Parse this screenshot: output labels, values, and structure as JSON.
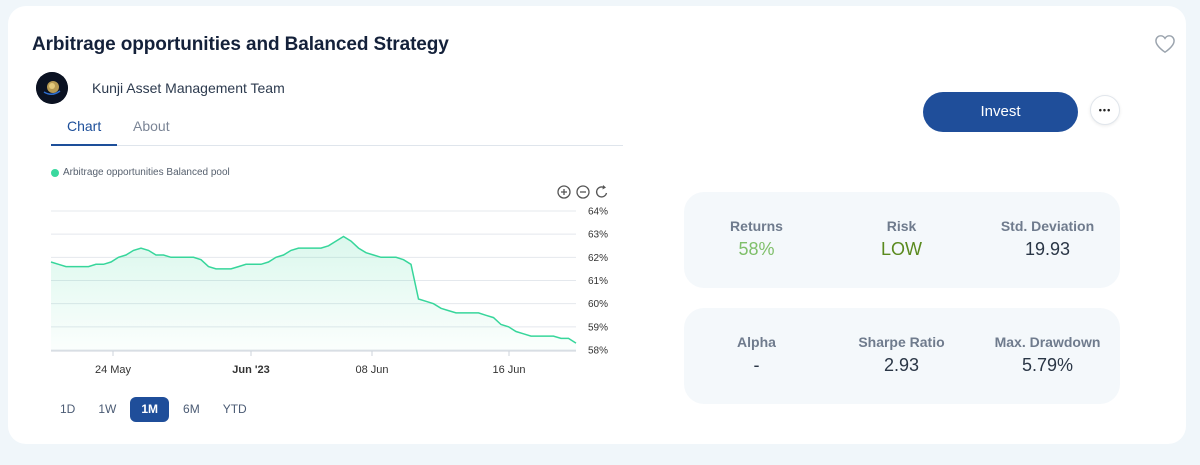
{
  "header": {
    "title": "Arbitrage opportunities and Balanced Strategy",
    "author": "Kunji Asset Management Team"
  },
  "tabs": [
    {
      "label": "Chart",
      "active": true
    },
    {
      "label": "About",
      "active": false
    }
  ],
  "actions": {
    "invest_label": "Invest",
    "more_label": "•••"
  },
  "chart_data": {
    "type": "area",
    "legend": [
      "Arbitrage opportunities Balanced pool"
    ],
    "legend_color": "#3ad89e",
    "line_color": "#37d69b",
    "x_tick_labels": [
      "24 May",
      "Jun '23",
      "08 Jun",
      "16 Jun"
    ],
    "y_tick_labels": [
      "64%",
      "63%",
      "62%",
      "61%",
      "60%",
      "59%",
      "58%"
    ],
    "ylim": [
      57.9,
      64
    ],
    "ylabel_position": "right",
    "grid": true,
    "series": [
      {
        "values": [
          61.8,
          61.7,
          61.6,
          61.6,
          61.6,
          61.6,
          61.7,
          61.7,
          61.8,
          62.0,
          62.1,
          62.3,
          62.4,
          62.3,
          62.1,
          62.1,
          62.0,
          62.0,
          62.0,
          62.0,
          61.9,
          61.6,
          61.5,
          61.5,
          61.5,
          61.6,
          61.7,
          61.7,
          61.7,
          61.8,
          62.0,
          62.1,
          62.3,
          62.4,
          62.4,
          62.4,
          62.4,
          62.5,
          62.7,
          62.9,
          62.7,
          62.4,
          62.2,
          62.1,
          62.0,
          62.0,
          62.0,
          61.9,
          61.7,
          60.2,
          60.1,
          60.0,
          59.8,
          59.7,
          59.6,
          59.6,
          59.6,
          59.6,
          59.5,
          59.4,
          59.1,
          59.0,
          58.8,
          58.7,
          58.6,
          58.6,
          58.6,
          58.6,
          58.5,
          58.5,
          58.3
        ]
      }
    ]
  },
  "chart_tools": [
    "zoom-in-icon",
    "zoom-out-icon",
    "reset-icon"
  ],
  "ranges": [
    {
      "label": "1D",
      "active": false
    },
    {
      "label": "1W",
      "active": false
    },
    {
      "label": "1M",
      "active": true
    },
    {
      "label": "6M",
      "active": false
    },
    {
      "label": "YTD",
      "active": false
    }
  ],
  "stats_row1": [
    {
      "label": "Returns",
      "value": "58%"
    },
    {
      "label": "Risk",
      "value": "LOW"
    },
    {
      "label": "Std. Deviation",
      "value": "19.93"
    }
  ],
  "stats_row2": [
    {
      "label": "Alpha",
      "value": "-"
    },
    {
      "label": "Sharpe Ratio",
      "value": "2.93"
    },
    {
      "label": "Max. Drawdown",
      "value": "5.79%"
    }
  ],
  "colors": {
    "accent": "#1f4e9a",
    "returns": "#7fbf6a",
    "risk_low": "#5a8a1e"
  }
}
